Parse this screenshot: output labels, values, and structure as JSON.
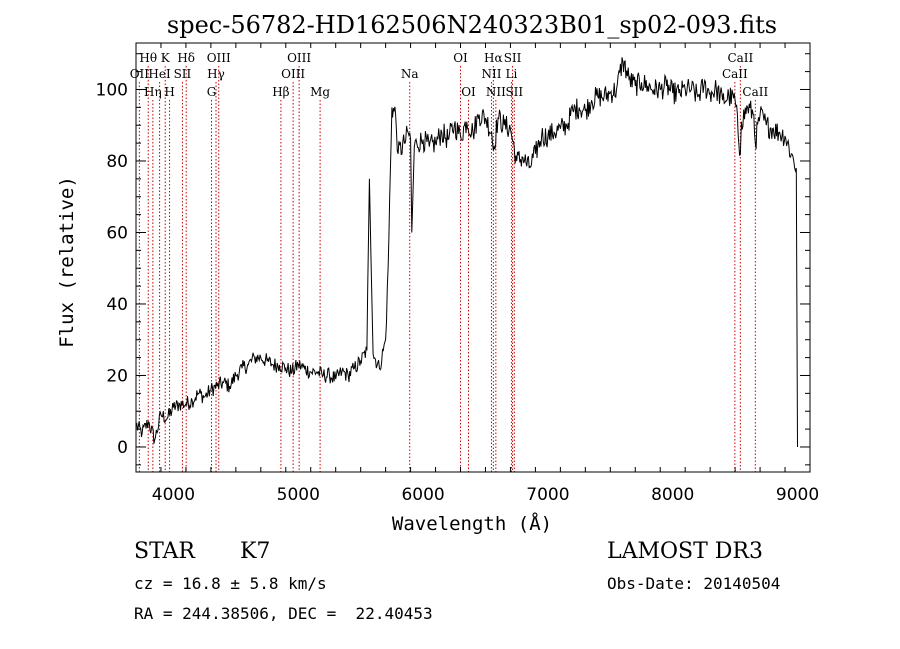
{
  "chart_data": {
    "type": "line",
    "title": "spec-56782-HD162506N240323B01_sp02-093.fits",
    "xlabel": "Wavelength (Å)",
    "ylabel": "Flux (relative)",
    "xlim": [
      3700,
      9100
    ],
    "ylim": [
      -7,
      113
    ],
    "xticks": [
      4000,
      5000,
      6000,
      7000,
      8000,
      9000
    ],
    "yticks": [
      0,
      20,
      40,
      60,
      80,
      100
    ],
    "line_color": "#000000",
    "marker_color": "#cc0000",
    "series": [
      {
        "values_note": "",
        "x": [
          3700,
          3750,
          3800,
          3850,
          3900,
          3950,
          4000,
          4050,
          4100,
          4150,
          4200,
          4250,
          4300,
          4350,
          4400,
          4450,
          4500,
          4550,
          4600,
          4650,
          4700,
          4750,
          4800,
          4850,
          4900,
          4950,
          5000,
          5050,
          5100,
          5150,
          5200,
          5250,
          5300,
          5350,
          5400,
          5450,
          5500,
          5550,
          5570,
          5600,
          5650,
          5700,
          5720,
          5750,
          5780,
          5800,
          5850,
          5880,
          5900,
          5910,
          5930,
          5950,
          6000,
          6050,
          6100,
          6150,
          6200,
          6250,
          6300,
          6350,
          6400,
          6450,
          6500,
          6550,
          6563,
          6600,
          6650,
          6700,
          6750,
          6800,
          6850,
          6900,
          6950,
          7000,
          7050,
          7100,
          7150,
          7200,
          7250,
          7300,
          7350,
          7400,
          7450,
          7500,
          7550,
          7600,
          7650,
          7700,
          7750,
          7800,
          7850,
          7900,
          7950,
          8000,
          8050,
          8100,
          8150,
          8200,
          8250,
          8300,
          8350,
          8400,
          8450,
          8500,
          8542,
          8550,
          8600,
          8650,
          8662,
          8700,
          8750,
          8800,
          8850,
          8900,
          8950,
          8990,
          9000
        ],
        "y": [
          6,
          4,
          7,
          2,
          9,
          8,
          11,
          12,
          12,
          13,
          15,
          14,
          16,
          17,
          18,
          17,
          20,
          22,
          23,
          25,
          25,
          24,
          23,
          23,
          22,
          21,
          23,
          22,
          21,
          21,
          20,
          20,
          19,
          21,
          20,
          22,
          24,
          27,
          75,
          26,
          22,
          30,
          50,
          95,
          93,
          82,
          85,
          88,
          86,
          60,
          84,
          85,
          86,
          84,
          85,
          88,
          86,
          90,
          87,
          91,
          88,
          93,
          92,
          88,
          83,
          92,
          90,
          89,
          80,
          81,
          78,
          82,
          87,
          87,
          88,
          89,
          90,
          94,
          95,
          94,
          97,
          98,
          98,
          99,
          100,
          108,
          103,
          101,
          102,
          101,
          100,
          100,
          101,
          99,
          99,
          100,
          100,
          98,
          101,
          99,
          100,
          97,
          98,
          97,
          82,
          91,
          95,
          93,
          85,
          93,
          90,
          89,
          88,
          87,
          82,
          78,
          0
        ]
      }
    ],
    "line_markers": [
      {
        "label": "Hθ",
        "x": 3798,
        "row": 1
      },
      {
        "label": "OII",
        "x": 3727,
        "row": 2
      },
      {
        "label": "Hη",
        "x": 3835,
        "row": 3
      },
      {
        "label": "HeI",
        "x": 3889,
        "row": 2
      },
      {
        "label": "K",
        "x": 3934,
        "row": 1
      },
      {
        "label": "H",
        "x": 3969,
        "row": 3
      },
      {
        "label": "Hδ",
        "x": 4102,
        "row": 1
      },
      {
        "label": "SII",
        "x": 4072,
        "row": 2
      },
      {
        "label": "OIII",
        "x": 4363,
        "row": 1
      },
      {
        "label": "Hγ",
        "x": 4341,
        "row": 2
      },
      {
        "label": "G",
        "x": 4305,
        "row": 3
      },
      {
        "label": "OIII",
        "x": 5007,
        "row": 1
      },
      {
        "label": "OIII",
        "x": 4959,
        "row": 2
      },
      {
        "label": "Hβ",
        "x": 4861,
        "row": 3
      },
      {
        "label": "Mg",
        "x": 5175,
        "row": 3
      },
      {
        "label": "Na",
        "x": 5893,
        "row": 2
      },
      {
        "label": "OI",
        "x": 6300,
        "row": 1
      },
      {
        "label": "OI",
        "x": 6364,
        "row": 3
      },
      {
        "label": "Hα",
        "x": 6563,
        "row": 1
      },
      {
        "label": "NII",
        "x": 6548,
        "row": 2
      },
      {
        "label": "NII",
        "x": 6583,
        "row": 3
      },
      {
        "label": "SII",
        "x": 6717,
        "row": 1
      },
      {
        "label": "Li",
        "x": 6708,
        "row": 2
      },
      {
        "label": "SII",
        "x": 6731,
        "row": 3
      },
      {
        "label": "CaII",
        "x": 8542,
        "row": 1
      },
      {
        "label": "CaII",
        "x": 8498,
        "row": 2
      },
      {
        "label": "CaII",
        "x": 8662,
        "row": 3
      }
    ]
  },
  "info": {
    "class_label": "STAR",
    "subclass": "K7",
    "survey": "LAMOST DR3",
    "cz_line": "cz = 16.8 ± 5.8 km/s",
    "obs_date_line": "Obs-Date: 20140504",
    "coords_line": "RA = 244.38506, DEC =  22.40453"
  }
}
